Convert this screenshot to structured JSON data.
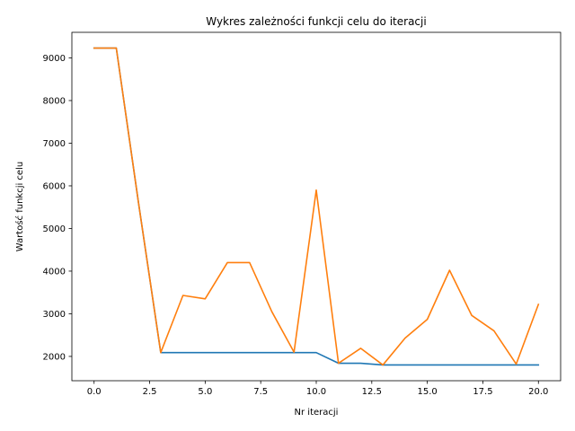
{
  "chart_data": {
    "type": "line",
    "title": "Wykres zależności funkcji celu do iteracji",
    "xlabel": "Nr iteracji",
    "ylabel": "Wartość funkcji celu",
    "xlim": [
      -1,
      21
    ],
    "ylim": [
      1430,
      9600
    ],
    "xticks": [
      0,
      2.5,
      5,
      7.5,
      10,
      12.5,
      15,
      17.5,
      20
    ],
    "xtick_labels": [
      "0.0",
      "2.5",
      "5.0",
      "7.5",
      "10.0",
      "12.5",
      "15.0",
      "17.5",
      "20.0"
    ],
    "yticks": [
      2000,
      3000,
      4000,
      5000,
      6000,
      7000,
      8000,
      9000
    ],
    "ytick_labels": [
      "2000",
      "3000",
      "4000",
      "5000",
      "6000",
      "7000",
      "8000",
      "9000"
    ],
    "grid": false,
    "x": [
      0,
      1,
      2,
      3,
      4,
      5,
      6,
      7,
      8,
      9,
      10,
      11,
      12,
      13,
      14,
      15,
      16,
      17,
      18,
      19,
      20
    ],
    "series": [
      {
        "color": "#1f77b4",
        "values": [
          9230,
          9230,
          5600,
          2090,
          2090,
          2090,
          2090,
          2090,
          2090,
          2090,
          2090,
          1840,
          1840,
          1800,
          1800,
          1800,
          1800,
          1800,
          1800,
          1800,
          1800
        ]
      },
      {
        "color": "#ff7f0e",
        "values": [
          9230,
          9230,
          5600,
          2090,
          3430,
          3350,
          4200,
          4200,
          3050,
          2100,
          5900,
          1840,
          2190,
          1800,
          2430,
          2870,
          4020,
          2960,
          2600,
          1820,
          3220
        ]
      }
    ]
  }
}
